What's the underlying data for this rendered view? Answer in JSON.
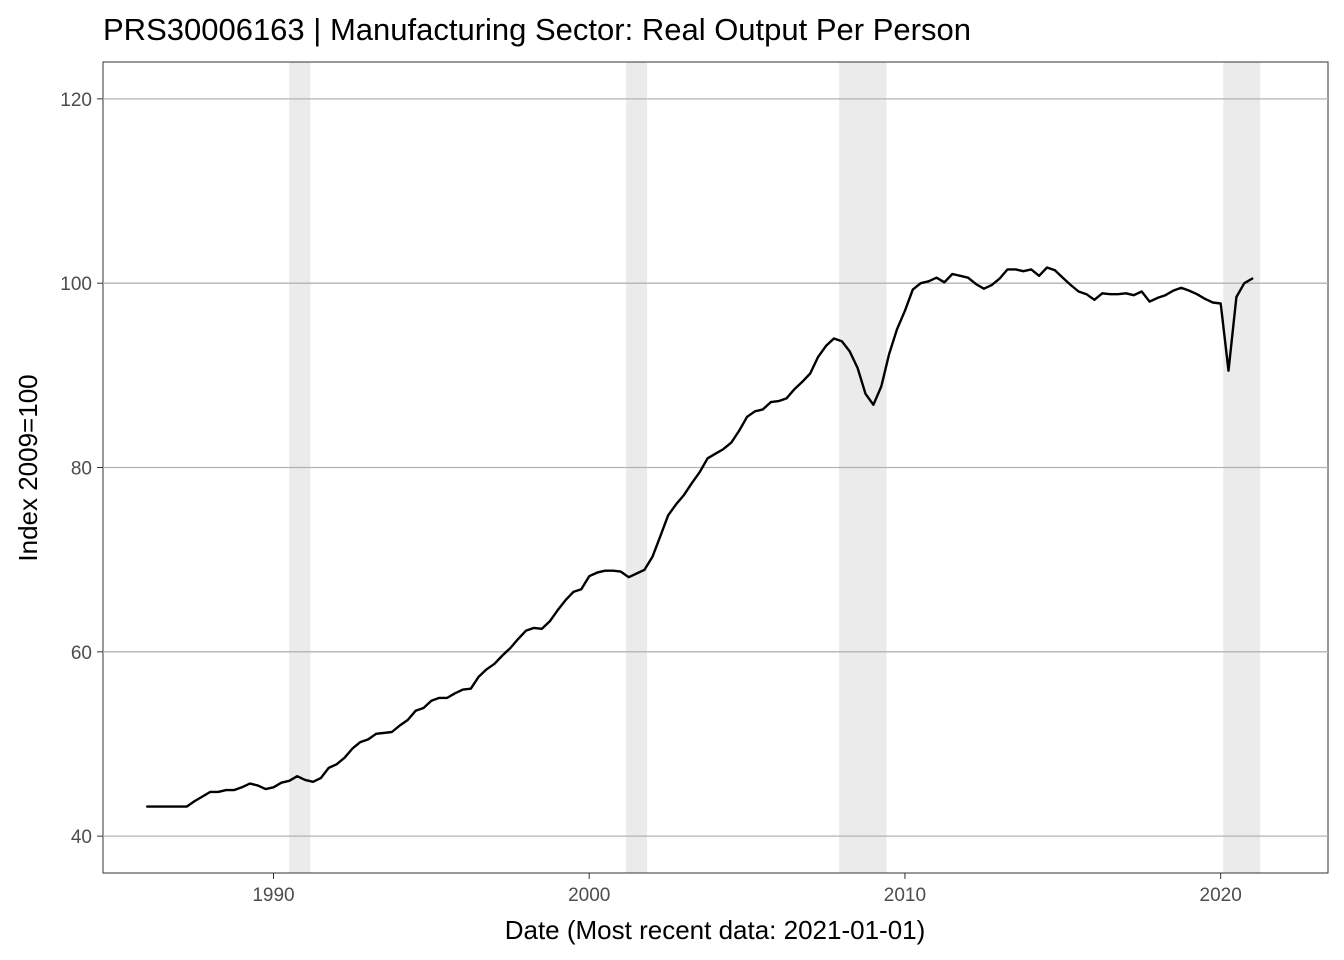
{
  "chart_data": {
    "type": "line",
    "title": "PRS30006163 | Manufacturing Sector: Real Output Per Person",
    "xlabel": "Date (Most recent data: 2021-01-01)",
    "ylabel": "Index 2009=100",
    "xlim": [
      1984.6,
      2023.4
    ],
    "ylim": [
      36,
      124
    ],
    "x_ticks": [
      1990,
      2000,
      2010,
      2020
    ],
    "y_ticks": [
      40,
      60,
      80,
      100,
      120
    ],
    "grid": true,
    "legend": "none",
    "recessions": [
      {
        "start": "1990-07-01",
        "end": "1991-03-01"
      },
      {
        "start": "2001-03-01",
        "end": "2001-11-01"
      },
      {
        "start": "2007-12-01",
        "end": "2009-06-01"
      },
      {
        "start": "2020-02-01",
        "end": "2021-04-01"
      }
    ],
    "series": [
      {
        "x": [
          "1986-01-01",
          "1986-04-01",
          "1986-07-01",
          "1986-10-01",
          "1987-01-01",
          "1987-04-01",
          "1987-07-01",
          "1987-10-01",
          "1988-01-01",
          "1988-04-01",
          "1988-07-01",
          "1988-10-01",
          "1989-01-01",
          "1989-04-01",
          "1989-07-01",
          "1989-10-01",
          "1990-01-01",
          "1990-04-01",
          "1990-07-01",
          "1990-10-01",
          "1991-01-01",
          "1991-04-01",
          "1991-07-01",
          "1991-10-01",
          "1992-01-01",
          "1992-04-01",
          "1992-07-01",
          "1992-10-01",
          "1993-01-01",
          "1993-04-01",
          "1993-07-01",
          "1993-10-01",
          "1994-01-01",
          "1994-04-01",
          "1994-07-01",
          "1994-10-01",
          "1995-01-01",
          "1995-04-01",
          "1995-07-01",
          "1995-10-01",
          "1996-01-01",
          "1996-04-01",
          "1996-07-01",
          "1996-10-01",
          "1997-01-01",
          "1997-04-01",
          "1997-07-01",
          "1997-10-01",
          "1998-01-01",
          "1998-04-01",
          "1998-07-01",
          "1998-10-01",
          "1999-01-01",
          "1999-04-01",
          "1999-07-01",
          "1999-10-01",
          "2000-01-01",
          "2000-04-01",
          "2000-07-01",
          "2000-10-01",
          "2001-01-01",
          "2001-04-01",
          "2001-07-01",
          "2001-10-01",
          "2002-01-01",
          "2002-04-01",
          "2002-07-01",
          "2002-10-01",
          "2003-01-01",
          "2003-04-01",
          "2003-07-01",
          "2003-10-01",
          "2004-01-01",
          "2004-04-01",
          "2004-07-01",
          "2004-10-01",
          "2005-01-01",
          "2005-04-01",
          "2005-07-01",
          "2005-10-01",
          "2006-01-01",
          "2006-04-01",
          "2006-07-01",
          "2006-10-01",
          "2007-01-01",
          "2007-04-01",
          "2007-07-01",
          "2007-10-01",
          "2008-01-01",
          "2008-04-01",
          "2008-07-01",
          "2008-10-01",
          "2009-01-01",
          "2009-04-01",
          "2009-07-01",
          "2009-10-01",
          "2010-01-01",
          "2010-04-01",
          "2010-07-01",
          "2010-10-01",
          "2011-01-01",
          "2011-04-01",
          "2011-07-01",
          "2011-10-01",
          "2012-01-01",
          "2012-04-01",
          "2012-07-01",
          "2012-10-01",
          "2013-01-01",
          "2013-04-01",
          "2013-07-01",
          "2013-10-01",
          "2014-01-01",
          "2014-04-01",
          "2014-07-01",
          "2014-10-01",
          "2015-01-01",
          "2015-04-01",
          "2015-07-01",
          "2015-10-01",
          "2016-01-01",
          "2016-04-01",
          "2016-07-01",
          "2016-10-01",
          "2017-01-01",
          "2017-04-01",
          "2017-07-01",
          "2017-10-01",
          "2018-01-01",
          "2018-04-01",
          "2018-07-01",
          "2018-10-01",
          "2019-01-01",
          "2019-04-01",
          "2019-07-01",
          "2019-10-01",
          "2020-01-01",
          "2020-04-01",
          "2020-07-01",
          "2020-10-01",
          "2021-01-01"
        ],
        "y": [
          43.2,
          43.2,
          43.2,
          43.2,
          43.2,
          43.2,
          43.8,
          44.3,
          44.8,
          44.8,
          45.0,
          45.0,
          45.3,
          45.7,
          45.5,
          45.1,
          45.3,
          45.8,
          46.0,
          46.5,
          46.1,
          45.9,
          46.3,
          47.4,
          47.8,
          48.5,
          49.5,
          50.2,
          50.5,
          51.1,
          51.2,
          51.3,
          52.0,
          52.6,
          53.6,
          53.9,
          54.7,
          55.0,
          55.0,
          55.5,
          55.9,
          56.0,
          57.3,
          58.1,
          58.7,
          59.6,
          60.4,
          61.4,
          62.3,
          62.6,
          62.5,
          63.3,
          64.5,
          65.6,
          66.5,
          66.8,
          68.2,
          68.6,
          68.8,
          68.8,
          68.7,
          68.1,
          68.5,
          68.9,
          70.3,
          72.5,
          74.8,
          76.0,
          77.0,
          78.3,
          79.5,
          81.0,
          81.5,
          82.0,
          82.7,
          84.0,
          85.5,
          86.1,
          86.3,
          87.1,
          87.2,
          87.5,
          88.5,
          89.3,
          90.2,
          92.0,
          93.2,
          94.0,
          93.7,
          92.6,
          90.8,
          88.0,
          86.8,
          88.8,
          92.3,
          95.0,
          97.0,
          99.3,
          100.0,
          100.2,
          100.6,
          100.1,
          101.0,
          100.8,
          100.6,
          99.9,
          99.4,
          99.8,
          100.5,
          101.5,
          101.5,
          101.3,
          101.5,
          100.8,
          101.7,
          101.4,
          100.6,
          99.8,
          99.1,
          98.8,
          98.2,
          98.9,
          98.8,
          98.8,
          98.9,
          98.7,
          99.1,
          98.0,
          98.4,
          98.7,
          99.2,
          99.5,
          99.2,
          98.8,
          98.3,
          97.9,
          97.8,
          90.5,
          98.5,
          100.0,
          100.5
        ]
      }
    ]
  }
}
